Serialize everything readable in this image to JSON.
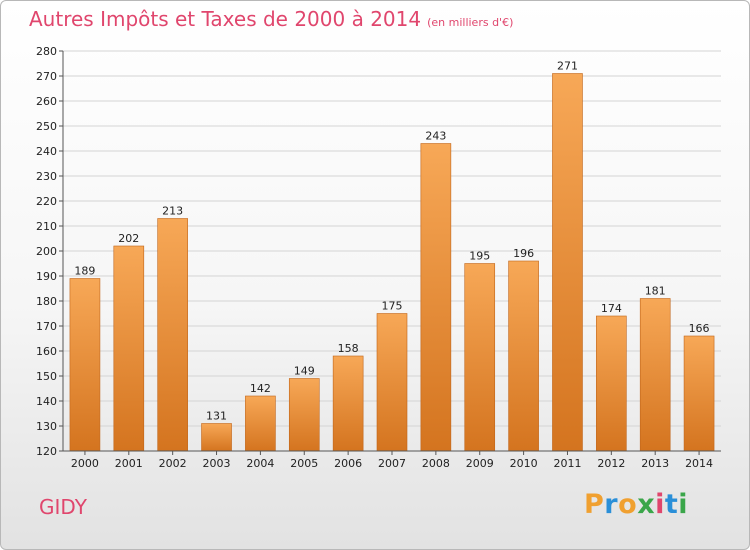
{
  "title": "Autres Impôts et Taxes de 2000 à 2014",
  "title_unit": "(en milliers d'€)",
  "town": "GIDY",
  "logo": {
    "letters": [
      "P",
      "r",
      "o",
      "x",
      "i",
      "t",
      "i"
    ],
    "colors": [
      "#f0a030",
      "#2a8fd8",
      "#f0a030",
      "#3aa64a",
      "#e0466d",
      "#2a8fd8",
      "#3aa64a"
    ]
  },
  "colors": {
    "bar_top": "#f7a857",
    "bar_bottom": "#d4741f",
    "bar_edge": "#c0651a",
    "title": "#e0466d",
    "grid": "#d4d4d4"
  },
  "chart_data": {
    "type": "bar",
    "title": "Autres Impôts et Taxes de 2000 à 2014",
    "subtitle": "(en milliers d'€)",
    "xlabel": "",
    "ylabel": "",
    "categories": [
      "2000",
      "2001",
      "2002",
      "2003",
      "2004",
      "2005",
      "2006",
      "2007",
      "2008",
      "2009",
      "2010",
      "2011",
      "2012",
      "2013",
      "2014"
    ],
    "values": [
      189,
      202,
      213,
      131,
      142,
      149,
      158,
      175,
      243,
      195,
      196,
      271,
      174,
      181,
      166
    ],
    "ylim": [
      120,
      280
    ],
    "yticks": [
      "120",
      "130",
      "140",
      "150",
      "160",
      "170",
      "180",
      "190",
      "200",
      "210",
      "220",
      "230",
      "240",
      "250",
      "260",
      "270",
      "280"
    ],
    "grid": true,
    "legend": "none"
  }
}
